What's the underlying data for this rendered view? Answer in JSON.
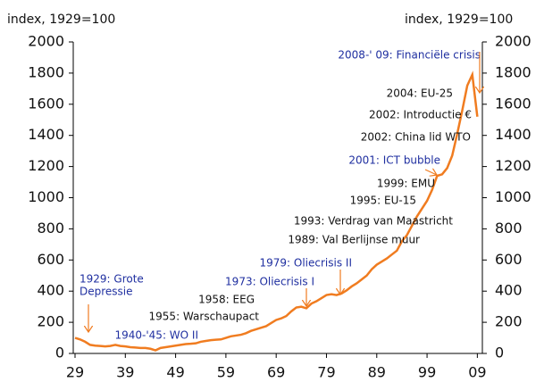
{
  "chart_data": {
    "type": "line",
    "y_label": "index, 1929=100",
    "y2_label": "index, 1929=100",
    "x": [
      1929,
      1930,
      1931,
      1932,
      1933,
      1934,
      1935,
      1936,
      1937,
      1938,
      1939,
      1940,
      1941,
      1942,
      1943,
      1944,
      1945,
      1946,
      1947,
      1948,
      1949,
      1950,
      1951,
      1952,
      1953,
      1954,
      1955,
      1956,
      1957,
      1958,
      1959,
      1960,
      1961,
      1962,
      1963,
      1964,
      1965,
      1966,
      1967,
      1968,
      1969,
      1970,
      1971,
      1972,
      1973,
      1974,
      1975,
      1976,
      1977,
      1978,
      1979,
      1980,
      1981,
      1982,
      1983,
      1984,
      1985,
      1986,
      1987,
      1988,
      1989,
      1990,
      1991,
      1992,
      1993,
      1994,
      1995,
      1996,
      1997,
      1998,
      1999,
      2000,
      2001,
      2002,
      2003,
      2004,
      2005,
      2006,
      2007,
      2008,
      2009
    ],
    "series": [
      {
        "color": "#f07c20",
        "values": [
          100,
          90,
          75,
          55,
          50,
          48,
          45,
          48,
          55,
          48,
          45,
          40,
          38,
          35,
          35,
          30,
          20,
          35,
          40,
          45,
          50,
          55,
          60,
          62,
          65,
          75,
          80,
          85,
          88,
          90,
          100,
          110,
          115,
          120,
          130,
          145,
          155,
          165,
          175,
          195,
          215,
          225,
          240,
          270,
          295,
          300,
          290,
          320,
          335,
          355,
          375,
          380,
          375,
          385,
          405,
          430,
          450,
          475,
          500,
          540,
          570,
          590,
          610,
          635,
          660,
          720,
          760,
          820,
          880,
          930,
          980,
          1050,
          1140,
          1150,
          1190,
          1270,
          1410,
          1560,
          1720,
          1790,
          1520
        ]
      }
    ],
    "xlim": [
      1929,
      2010
    ],
    "xticks": [
      {
        "value": 1929,
        "label": "29"
      },
      {
        "value": 1939,
        "label": "39"
      },
      {
        "value": 1949,
        "label": "49"
      },
      {
        "value": 1959,
        "label": "59"
      },
      {
        "value": 1969,
        "label": "69"
      },
      {
        "value": 1979,
        "label": "79"
      },
      {
        "value": 1989,
        "label": "89"
      },
      {
        "value": 1999,
        "label": "99"
      },
      {
        "value": 2009,
        "label": "09"
      }
    ],
    "ylim": [
      0,
      2000
    ],
    "yticks": [
      0,
      200,
      400,
      600,
      800,
      1000,
      1200,
      1400,
      1600,
      1800,
      2000
    ],
    "arrow_color": "#f07c20",
    "annotations": [
      {
        "lines": [
          "2008-' 09: Financiële crisis"
        ],
        "color": "#1f2fa0"
      },
      {
        "lines": [
          "2004:  EU-25"
        ],
        "color": "#111111"
      },
      {
        "lines": [
          "2002: Introductie €"
        ],
        "color": "#111111"
      },
      {
        "lines": [
          "2002: China  lid  WTO"
        ],
        "color": "#111111"
      },
      {
        "lines": [
          "2001: ICT bubble"
        ],
        "color": "#1f2fa0"
      },
      {
        "lines": [
          "1999: EMU"
        ],
        "color": "#111111"
      },
      {
        "lines": [
          "1995:  EU-15"
        ],
        "color": "#111111"
      },
      {
        "lines": [
          "1993: Verdrag van Maastricht"
        ],
        "color": "#111111"
      },
      {
        "lines": [
          "1989: Val  Berlijnse muur"
        ],
        "color": "#111111"
      },
      {
        "lines": [
          "1979: Oliecrisis II"
        ],
        "color": "#1f2fa0"
      },
      {
        "lines": [
          "1973: Oliecrisis I"
        ],
        "color": "#1f2fa0"
      },
      {
        "lines": [
          "1958: EEG"
        ],
        "color": "#111111"
      },
      {
        "lines": [
          "1955: Warschaupact"
        ],
        "color": "#111111"
      },
      {
        "lines": [
          "1929: Grote",
          "Depressie"
        ],
        "color": "#1f2fa0"
      },
      {
        "lines": [
          "1940-'45: WO II"
        ],
        "color": "#1f2fa0"
      }
    ]
  }
}
